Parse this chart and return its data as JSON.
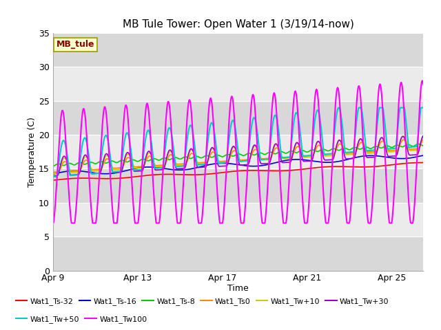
{
  "title": "MB Tule Tower: Open Water 1 (3/19/14-now)",
  "xlabel": "Time",
  "ylabel": "Temperature (C)",
  "xlim_days": [
    0,
    17.5
  ],
  "ylim": [
    0,
    35
  ],
  "yticks": [
    0,
    5,
    10,
    15,
    20,
    25,
    30,
    35
  ],
  "xtick_labels": [
    "Apr 9",
    "Apr 13",
    "Apr 17",
    "Apr 21",
    "Apr 25"
  ],
  "xtick_positions": [
    0,
    4,
    8,
    12,
    16
  ],
  "series": {
    "Wat1_Ts-32": {
      "color": "#ff0000",
      "lw": 1.2
    },
    "Wat1_Ts-16": {
      "color": "#0000cc",
      "lw": 1.2
    },
    "Wat1_Ts-8": {
      "color": "#00cc00",
      "lw": 1.2
    },
    "Wat1_Ts0": {
      "color": "#ff8800",
      "lw": 1.2
    },
    "Wat1_Tw+10": {
      "color": "#cccc00",
      "lw": 1.2
    },
    "Wat1_Tw+30": {
      "color": "#9900cc",
      "lw": 1.2
    },
    "Wat1_Tw+50": {
      "color": "#00cccc",
      "lw": 1.5
    },
    "Wat1_Tw100": {
      "color": "#ff00ff",
      "lw": 1.5
    }
  },
  "plot_bg_light": "#ebebeb",
  "plot_bg_dark": "#d8d8d8",
  "grid_color": "#ffffff",
  "fig_bg": "#ffffff",
  "mb_tule_color": "#880000",
  "mb_tule_bg": "#ffffcc",
  "mb_tule_edge": "#999900"
}
